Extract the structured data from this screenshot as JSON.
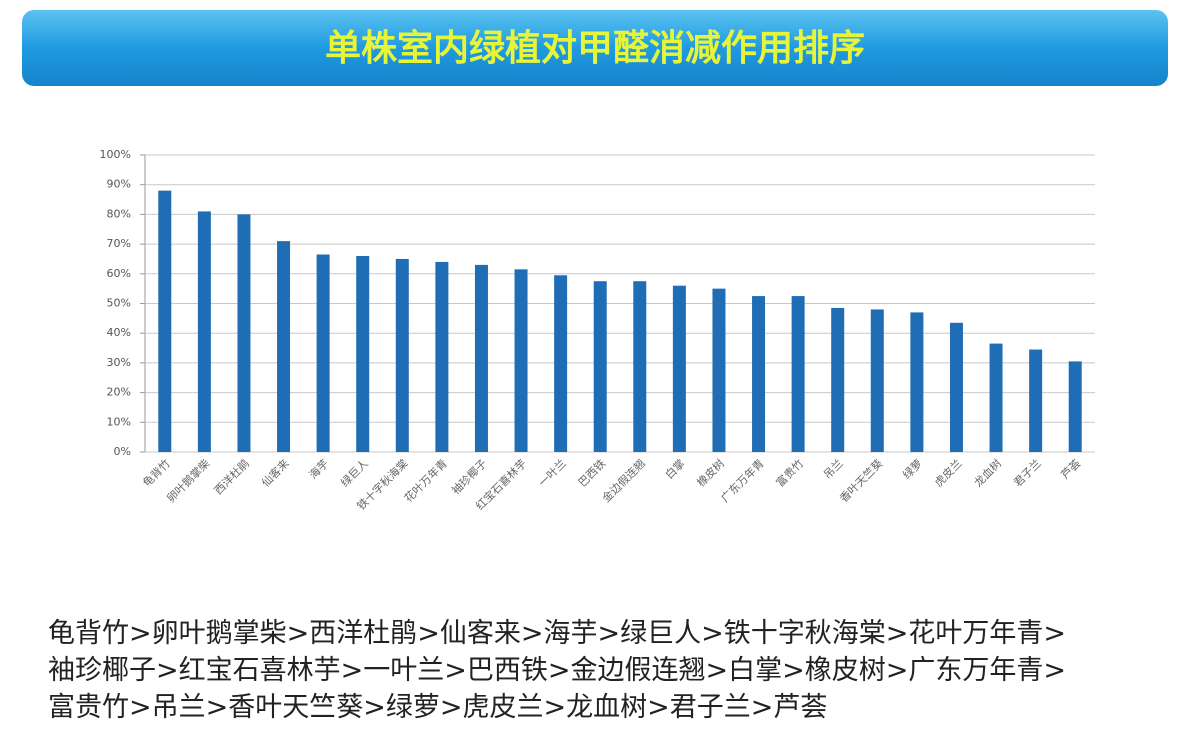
{
  "chart_data": {
    "type": "bar",
    "title": "单株室内绿植对甲醛消减作用排序",
    "categories": [
      "龟背竹",
      "卵叶鹅掌柴",
      "西洋杜鹃",
      "仙客来",
      "海芋",
      "绿巨人",
      "铁十字秋海棠",
      "花叶万年青",
      "袖珍椰子",
      "红宝石喜林芋",
      "一叶兰",
      "巴西铁",
      "金边假连翘",
      "白掌",
      "橡皮树",
      "广东万年青",
      "富贵竹",
      "吊兰",
      "香叶天竺葵",
      "绿萝",
      "虎皮兰",
      "龙血树",
      "君子兰",
      "芦荟"
    ],
    "values": [
      88,
      81,
      80,
      71,
      66.5,
      66,
      65,
      64,
      63,
      61.5,
      59.5,
      57.5,
      57.5,
      56,
      55,
      52.5,
      52.5,
      48.5,
      48,
      47,
      43.5,
      36.5,
      34.5,
      30.5
    ],
    "color": "#1f6db5",
    "ylim": [
      0,
      100
    ],
    "yticks": [
      {
        "value": 0,
        "label": "0%"
      },
      {
        "value": 10,
        "label": "10%"
      },
      {
        "value": 20,
        "label": "20%"
      },
      {
        "value": 30,
        "label": "30%"
      },
      {
        "value": 40,
        "label": "40%"
      },
      {
        "value": 50,
        "label": "50%"
      },
      {
        "value": 60,
        "label": "60%"
      },
      {
        "value": 70,
        "label": "70%"
      },
      {
        "value": 80,
        "label": "80%"
      },
      {
        "value": 90,
        "label": "90%"
      },
      {
        "value": 100,
        "label": "100%"
      }
    ],
    "grid": true
  },
  "caption": [
    "龟背竹>卵叶鹅掌柴>西洋杜鹃>仙客来>海芋>绿巨人>铁十字秋海棠>花叶万年青>",
    "袖珍椰子>红宝石喜林芋>一叶兰>巴西铁>金边假连翘>白掌>橡皮树>广东万年青>",
    "富贵竹>吊兰>香叶天竺葵>绿萝>虎皮兰>龙血树>君子兰>芦荟"
  ]
}
